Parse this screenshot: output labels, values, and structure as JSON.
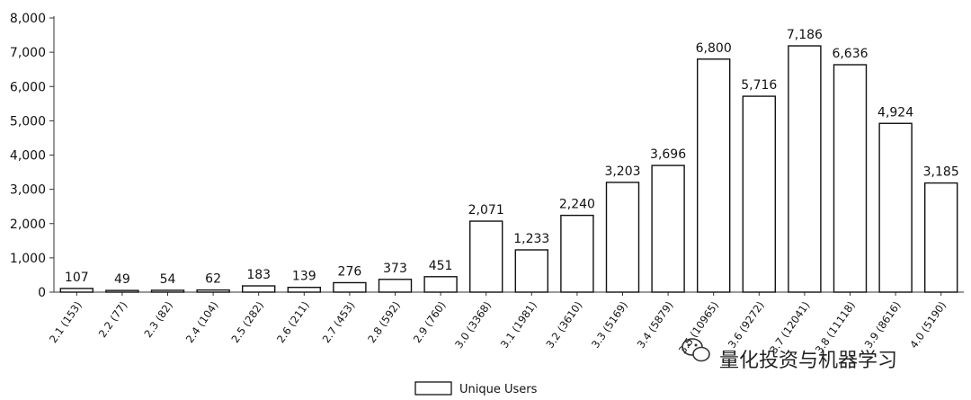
{
  "chart_data": {
    "type": "bar",
    "categories": [
      "2.1 (153)",
      "2.2 (77)",
      "2.3 (82)",
      "2.4 (104)",
      "2.5 (282)",
      "2.6 (211)",
      "2.7 (453)",
      "2.8 (592)",
      "2.9 (760)",
      "3.0 (3368)",
      "3.1 (1981)",
      "3.2 (3610)",
      "3.3 (5169)",
      "3.4 (5879)",
      "3.5 (10965)",
      "3.6 (9272)",
      "3.7 (12041)",
      "3.8 (11118)",
      "3.9 (8616)",
      "4.0 (5190)"
    ],
    "series": [
      {
        "name": "Unique Users",
        "values": [
          107,
          49,
          54,
          62,
          183,
          139,
          276,
          373,
          451,
          2071,
          1233,
          2240,
          3203,
          3696,
          6800,
          5716,
          7186,
          6636,
          4924,
          3185
        ],
        "value_labels": [
          "107",
          "49",
          "54",
          "62",
          "183",
          "139",
          "276",
          "373",
          "451",
          "2,071",
          "1,233",
          "2,240",
          "3,203",
          "3,696",
          "6,800",
          "5,716",
          "7,186",
          "6,636",
          "4,924",
          "3,185"
        ]
      }
    ],
    "ylim": [
      0,
      8000
    ],
    "yticks": [
      0,
      1000,
      2000,
      3000,
      4000,
      5000,
      6000,
      7000,
      8000
    ],
    "ytick_labels": [
      "0",
      "1,000",
      "2,000",
      "3,000",
      "4,000",
      "5,000",
      "6,000",
      "7,000",
      "8,000"
    ],
    "title": "",
    "xlabel": "",
    "ylabel": "",
    "grid": false,
    "legend_position": "bottom-center",
    "bar_fill": "#ffffff",
    "bar_stroke": "#111111"
  },
  "watermark": {
    "text": "量化投资与机器学习",
    "icon": "wechat-icon"
  }
}
